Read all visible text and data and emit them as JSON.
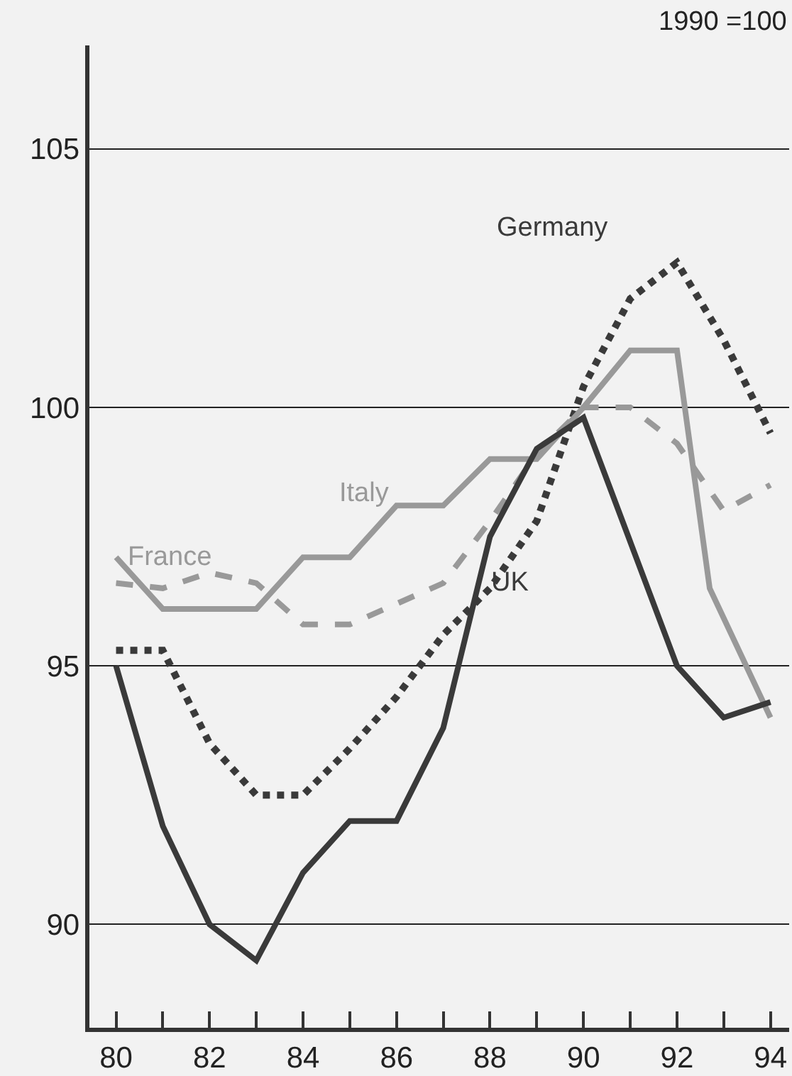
{
  "chart_data": {
    "type": "line",
    "annotations": [
      "1990 =100"
    ],
    "xlim": [
      79.43,
      94.4
    ],
    "xticks": [
      80,
      {
        "value": 81,
        "label": null
      },
      82,
      {
        "value": 83,
        "label": null
      },
      84,
      {
        "value": 85,
        "label": null
      },
      86,
      {
        "value": 87,
        "label": null
      },
      88,
      {
        "value": 89,
        "label": null
      },
      90,
      {
        "value": 91,
        "label": null
      },
      92,
      {
        "value": 93,
        "label": null
      },
      94
    ],
    "ylim": [
      88,
      107
    ],
    "yticks": [
      90,
      95,
      100,
      105
    ],
    "grid": "y",
    "legend": false,
    "marker": "none",
    "series": [
      {
        "name": "Germany",
        "color": "#3a3a3a",
        "line_style": "dotted",
        "x": [
          80,
          81,
          82,
          83,
          84,
          85,
          86,
          87,
          88,
          89,
          90,
          91,
          92,
          93,
          94
        ],
        "values": [
          95.3,
          95.3,
          93.5,
          92.5,
          92.5,
          93.4,
          94.4,
          95.6,
          96.5,
          97.8,
          100.4,
          102.1,
          102.8,
          101.3,
          99.5
        ]
      },
      {
        "name": "Italy",
        "color": "#999999",
        "line_style": "solid",
        "x": [
          80,
          81,
          82,
          83,
          84,
          85,
          86,
          87,
          88,
          89,
          90,
          91,
          92,
          92.7,
          94
        ],
        "values": [
          97.1,
          96.1,
          96.1,
          96.1,
          97.1,
          97.1,
          98.1,
          98.1,
          99.0,
          99.0,
          100.0,
          101.1,
          101.1,
          96.5,
          94.0
        ]
      },
      {
        "name": "France",
        "color": "#999999",
        "line_style": "dashed",
        "x": [
          80,
          81,
          82,
          83,
          84,
          85,
          86,
          87,
          88,
          89,
          90,
          91,
          92,
          93,
          94
        ],
        "values": [
          96.6,
          96.5,
          96.8,
          96.6,
          95.8,
          95.8,
          96.2,
          96.6,
          97.8,
          99.1,
          100.0,
          100.0,
          99.3,
          98.0,
          98.5
        ]
      },
      {
        "name": "UK",
        "color": "#3a3a3a",
        "line_style": "solid",
        "x": [
          80,
          81,
          82,
          83,
          84,
          85,
          86,
          87,
          88,
          89,
          90,
          91,
          92,
          93,
          94
        ],
        "values": [
          95.0,
          91.9,
          90.0,
          89.3,
          91.0,
          92.0,
          92.0,
          93.8,
          97.5,
          99.2,
          99.8,
          97.4,
          95.0,
          94.0,
          94.3
        ]
      }
    ]
  }
}
